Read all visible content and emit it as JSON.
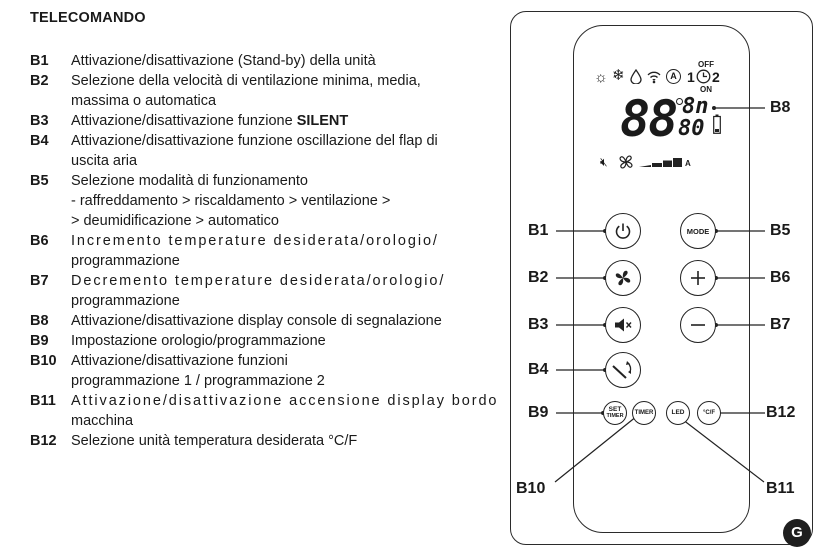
{
  "heading": "TELECOMANDO",
  "legend": [
    {
      "code": "B1",
      "lines": [
        "Attivazione/disattivazione (Stand-by) della unità"
      ]
    },
    {
      "code": "B2",
      "lines": [
        "Selezione della velocità di ventilazione minima, media,",
        "massima o automatica"
      ]
    },
    {
      "code": "B3",
      "pre": "Attivazione/disattivazione funzione ",
      "bold": "SILENT"
    },
    {
      "code": "B4",
      "lines": [
        "Attivazione/disattivazione funzione oscillazione del flap di",
        "uscita aria"
      ]
    },
    {
      "code": "B5",
      "lines": [
        "Selezione modalità di funzionamento",
        "- raffreddamento > riscaldamento > ventilazione >",
        "> deumidificazione > automatico"
      ]
    },
    {
      "code": "B6",
      "lines": [
        "Incremento temperature desiderata/orologio/",
        "programmazione"
      ],
      "spaced": true
    },
    {
      "code": "B7",
      "lines": [
        "Decremento temperature desiderata/orologio/",
        "programmazione"
      ],
      "spaced": true
    },
    {
      "code": "B8",
      "lines": [
        "Attivazione/disattivazione display console di segnalazione"
      ]
    },
    {
      "code": "B9",
      "lines": [
        "Impostazione orologio/programmazione"
      ]
    },
    {
      "code": "B10",
      "lines": [
        "Attivazione/disattivazione funzioni",
        "programmazione 1 / programmazione 2"
      ]
    },
    {
      "code": "B11",
      "lines": [
        "Attivazione/disattivazione accensione display bordo",
        "macchina"
      ],
      "spaced": true
    },
    {
      "code": "B12",
      "lines": [
        "Selezione unità temperatura desiderata °C/F"
      ]
    }
  ],
  "remote": {
    "display": {
      "digits": "88",
      "small_top": "8n",
      "small_bottom": "80",
      "off_label": "OFF",
      "on_label": "ON",
      "timer_1": "1",
      "timer_2": "2",
      "auto_letter": "A",
      "fan_auto_letter": "A"
    },
    "buttons": {
      "mode": "MODE",
      "set_timer_top": "SET",
      "set_timer_bottom": "TIMER",
      "timer": "TIMER",
      "led": "LED",
      "cf": "°C/F"
    }
  },
  "callouts": {
    "b1": "B1",
    "b2": "B2",
    "b3": "B3",
    "b4": "B4",
    "b5": "B5",
    "b6": "B6",
    "b7": "B7",
    "b8": "B8",
    "b9": "B9",
    "b10": "B10",
    "b11": "B11",
    "b12": "B12"
  },
  "figure_badge": "G"
}
